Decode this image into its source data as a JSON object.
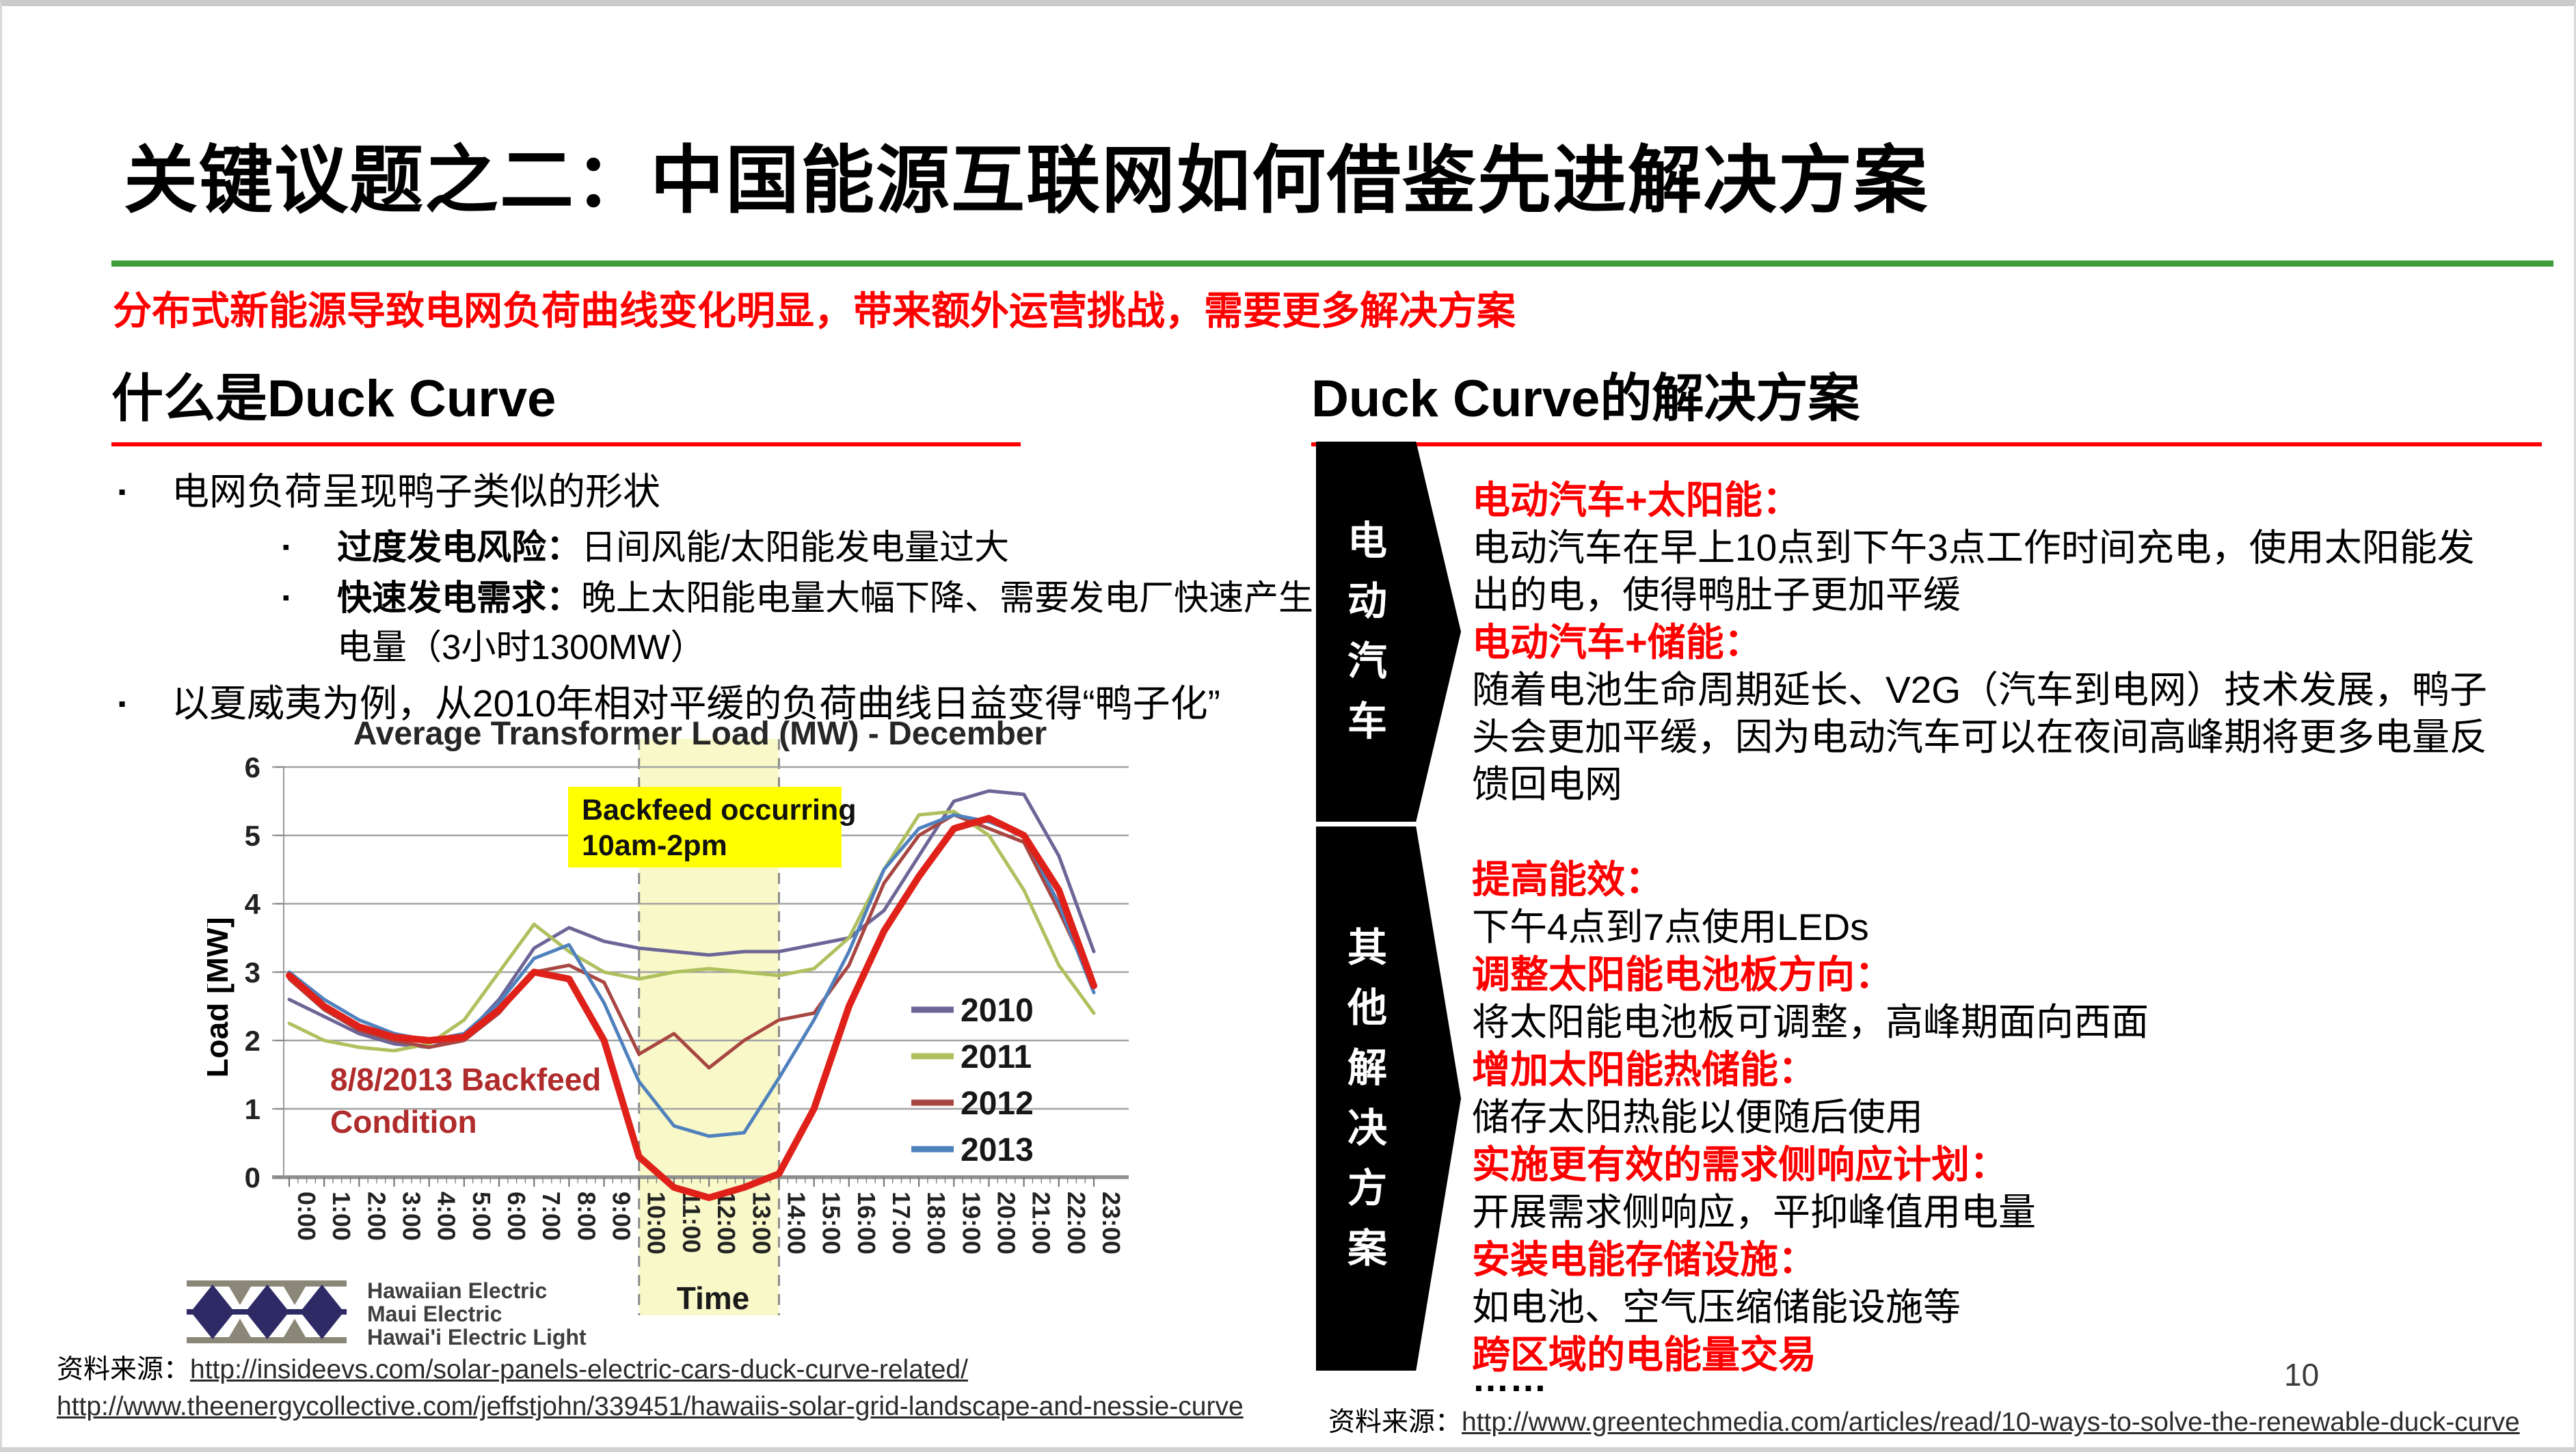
{
  "page_number": "10",
  "title": "关键议题之二：中国能源互联网如何借鉴先进解决方案",
  "subtitle": "分布式新能源导致电网负荷曲线变化明显，带来额外运营挑战，需要更多解决方案",
  "left": {
    "heading": "什么是Duck Curve",
    "bullets": [
      {
        "level": 1,
        "text": "电网负荷呈现鸭子类似的形状"
      },
      {
        "level": 2,
        "bold": "过度发电风险：",
        "text": "日间风能/太阳能发电量过大"
      },
      {
        "level": 2,
        "bold": "快速发电需求：",
        "text": "晚上太阳能电量大幅下降、需要发电厂快速产生电量（3小时1300MW）"
      },
      {
        "level": 1,
        "text": "以夏威夷为例，从2010年相对平缓的负荷曲线日益变得“鸭子化”"
      }
    ],
    "logo": {
      "lines": [
        "Hawaiian Electric",
        "Maui Electric",
        "Hawai'i Electric Light"
      ]
    },
    "source_label": "资料来源：",
    "source_urls": [
      "http://insideevs.com/solar-panels-electric-cars-duck-curve-related/",
      "http://www.theenergycollective.com/jeffstjohn/339451/hawaiis-solar-grid-landscape-and-nessie-curve"
    ]
  },
  "right": {
    "heading": "Duck Curve的解决方案",
    "arrow1": "电动汽车",
    "arrow2": "其他解决方案",
    "group1": [
      {
        "title": "电动汽车+太阳能：",
        "body": "电动汽车在早上10点到下午3点工作时间充电，使用太阳能发出的电，使得鸭肚子更加平缓"
      },
      {
        "title": "电动汽车+储能：",
        "body": "随着电池生命周期延长、V2G（汽车到电网）技术发展，鸭子头会更加平缓，因为电动汽车可以在夜间高峰期将更多电量反馈回电网"
      }
    ],
    "group2": [
      {
        "title": "提高能效：",
        "body": "下午4点到7点使用LEDs"
      },
      {
        "title": "调整太阳能电池板方向：",
        "body": "将太阳能电池板可调整，高峰期面向西面"
      },
      {
        "title": "增加太阳能热储能：",
        "body": "储存太阳热能以便随后使用"
      },
      {
        "title": "实施更有效的需求侧响应计划：",
        "body": "开展需求侧响应，平抑峰值用电量"
      },
      {
        "title": "安装电能存储设施：",
        "body": "如电池、空气压缩储能设施等"
      },
      {
        "title": "跨区域的电能量交易",
        "body": ""
      }
    ],
    "ellipsis": "……",
    "source_label": "资料来源：",
    "source_url": "http://www.greentechmedia.com/articles/read/10-ways-to-solve-the-renewable-duck-curve"
  },
  "chart_data": {
    "type": "line",
    "title": "Average Transformer Load (MW) - December",
    "xlabel": "Time",
    "ylabel": "Load [MW]",
    "ylim": [
      0,
      6
    ],
    "yticks": [
      0,
      1,
      2,
      3,
      4,
      5,
      6
    ],
    "grid": true,
    "legend_position": "right-middle",
    "x": [
      "0:00",
      "1:00",
      "2:00",
      "3:00",
      "4:00",
      "5:00",
      "6:00",
      "7:00",
      "8:00",
      "9:00",
      "10:00",
      "11:00",
      "12:00",
      "13:00",
      "14:00",
      "15:00",
      "16:00",
      "17:00",
      "18:00",
      "19:00",
      "20:00",
      "21:00",
      "22:00",
      "23:00"
    ],
    "series": [
      {
        "name": "2010",
        "color": "#6E6597",
        "legend": true,
        "values": [
          2.6,
          2.35,
          2.1,
          1.95,
          1.9,
          2.05,
          2.6,
          3.35,
          3.65,
          3.45,
          3.35,
          3.3,
          3.25,
          3.3,
          3.3,
          3.4,
          3.5,
          3.9,
          4.7,
          5.5,
          5.65,
          5.6,
          4.7,
          3.3
        ]
      },
      {
        "name": "2011",
        "color": "#AFC05E",
        "legend": true,
        "values": [
          2.25,
          2.0,
          1.9,
          1.85,
          1.95,
          2.3,
          3.0,
          3.7,
          3.3,
          3.0,
          2.9,
          3.0,
          3.05,
          3.0,
          2.95,
          3.05,
          3.5,
          4.5,
          5.3,
          5.35,
          5.0,
          4.2,
          3.1,
          2.4
        ]
      },
      {
        "name": "2012",
        "color": "#A84642",
        "legend": true,
        "values": [
          2.9,
          2.45,
          2.15,
          2.0,
          1.9,
          2.0,
          2.4,
          3.0,
          3.1,
          2.85,
          1.8,
          2.1,
          1.6,
          2.0,
          2.3,
          2.4,
          3.1,
          4.3,
          5.0,
          5.3,
          5.1,
          4.9,
          3.9,
          2.8
        ]
      },
      {
        "name": "2013",
        "color": "#4F81BD",
        "legend": true,
        "values": [
          3.0,
          2.6,
          2.3,
          2.1,
          2.0,
          2.1,
          2.55,
          3.2,
          3.4,
          2.55,
          1.4,
          0.75,
          0.6,
          0.65,
          1.45,
          2.3,
          3.3,
          4.5,
          5.1,
          5.3,
          5.2,
          5.0,
          4.0,
          2.7
        ]
      },
      {
        "name": "8/8/2013",
        "color": "#DF2119",
        "legend": false,
        "thick": true,
        "values": [
          2.95,
          2.5,
          2.2,
          2.05,
          2.0,
          2.05,
          2.45,
          3.0,
          2.9,
          2.0,
          0.3,
          -0.15,
          -0.3,
          -0.15,
          0.05,
          1.0,
          2.5,
          3.6,
          4.4,
          5.1,
          5.25,
          5.0,
          4.2,
          2.8
        ]
      }
    ],
    "highlight_band": {
      "from": "10:00",
      "to": "14:00",
      "color": "#F8F8C9",
      "callout": [
        "Backfeed occurring",
        "10am-2pm"
      ],
      "callout_bg": "#FFFF00"
    },
    "annotation": {
      "lines": [
        "8/8/2013 Backfeed",
        "Condition"
      ],
      "color": "#B02B2B"
    }
  }
}
